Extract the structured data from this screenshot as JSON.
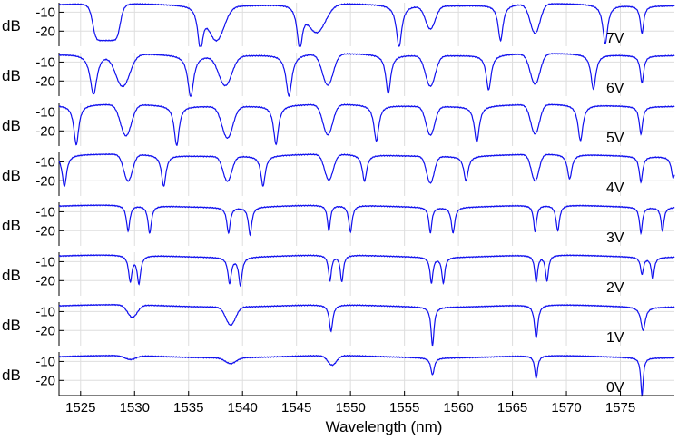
{
  "chart_data": {
    "type": "line",
    "xlabel": "Wavelength (nm)",
    "xlim": [
      1523,
      1580
    ],
    "xticks": [
      "1525",
      "1530",
      "1535",
      "1540",
      "1545",
      "1550",
      "1555",
      "1560",
      "1565",
      "1570",
      "1575"
    ],
    "ylabel": "dB",
    "ylim": [
      -28,
      -5
    ],
    "yticks": [
      "-10",
      "-20"
    ],
    "grid": true,
    "line_color": "#1010ee",
    "panels": [
      {
        "label": "7V",
        "baseline": -6.0,
        "dips": [
          {
            "center": 1527.4,
            "width": 1.3,
            "depth": -25.5,
            "shape": "flat"
          },
          {
            "center": 1536.1,
            "width": 0.55,
            "depth": -28.0,
            "shape": "sharp"
          },
          {
            "center": 1537.6,
            "width": 0.7,
            "depth": -23.5,
            "shape": "round"
          },
          {
            "center": 1545.3,
            "width": 0.55,
            "depth": -28.0,
            "shape": "sharp"
          },
          {
            "center": 1546.9,
            "width": 0.8,
            "depth": -20.5,
            "shape": "round"
          },
          {
            "center": 1554.5,
            "width": 0.55,
            "depth": -28.0,
            "shape": "sharp"
          },
          {
            "center": 1557.4,
            "width": 0.45,
            "depth": -18.0,
            "shape": "round"
          },
          {
            "center": 1563.9,
            "width": 0.5,
            "depth": -25.0,
            "shape": "sharp"
          },
          {
            "center": 1567.1,
            "width": 0.45,
            "depth": -21.5,
            "shape": "round"
          },
          {
            "center": 1573.6,
            "width": 0.5,
            "depth": -26.5,
            "shape": "sharp"
          },
          {
            "center": 1577.0,
            "width": 0.35,
            "depth": -20.5,
            "shape": "sharp"
          }
        ]
      },
      {
        "label": "6V",
        "baseline": -6.0,
        "dips": [
          {
            "center": 1526.2,
            "width": 0.7,
            "depth": -27.5,
            "shape": "sharp"
          },
          {
            "center": 1528.9,
            "width": 0.65,
            "depth": -23.0,
            "shape": "round"
          },
          {
            "center": 1535.2,
            "width": 0.6,
            "depth": -28.0,
            "shape": "sharp"
          },
          {
            "center": 1538.4,
            "width": 0.6,
            "depth": -21.5,
            "shape": "round"
          },
          {
            "center": 1544.3,
            "width": 0.6,
            "depth": -28.0,
            "shape": "sharp"
          },
          {
            "center": 1547.9,
            "width": 0.5,
            "depth": -22.5,
            "shape": "round"
          },
          {
            "center": 1553.5,
            "width": 0.5,
            "depth": -26.5,
            "shape": "sharp"
          },
          {
            "center": 1557.4,
            "width": 0.45,
            "depth": -22.0,
            "shape": "round"
          },
          {
            "center": 1562.8,
            "width": 0.5,
            "depth": -24.5,
            "shape": "sharp"
          },
          {
            "center": 1567.1,
            "width": 0.45,
            "depth": -22.0,
            "shape": "round"
          },
          {
            "center": 1572.5,
            "width": 0.5,
            "depth": -24.5,
            "shape": "sharp"
          },
          {
            "center": 1577.0,
            "width": 0.35,
            "depth": -20.5,
            "shape": "sharp"
          }
        ]
      },
      {
        "label": "5V",
        "baseline": -6.5,
        "dips": [
          {
            "center": 1524.6,
            "width": 0.5,
            "depth": -27.5,
            "shape": "sharp"
          },
          {
            "center": 1529.2,
            "width": 0.5,
            "depth": -23.0,
            "shape": "round"
          },
          {
            "center": 1533.9,
            "width": 0.5,
            "depth": -27.5,
            "shape": "sharp"
          },
          {
            "center": 1538.6,
            "width": 0.5,
            "depth": -23.0,
            "shape": "round"
          },
          {
            "center": 1543.1,
            "width": 0.5,
            "depth": -27.0,
            "shape": "sharp"
          },
          {
            "center": 1547.9,
            "width": 0.45,
            "depth": -22.5,
            "shape": "round"
          },
          {
            "center": 1552.4,
            "width": 0.5,
            "depth": -25.5,
            "shape": "sharp"
          },
          {
            "center": 1557.4,
            "width": 0.4,
            "depth": -21.5,
            "shape": "round"
          },
          {
            "center": 1561.7,
            "width": 0.5,
            "depth": -25.5,
            "shape": "sharp"
          },
          {
            "center": 1567.1,
            "width": 0.4,
            "depth": -22.0,
            "shape": "round"
          },
          {
            "center": 1571.3,
            "width": 0.5,
            "depth": -25.5,
            "shape": "sharp"
          },
          {
            "center": 1576.9,
            "width": 0.35,
            "depth": -21.0,
            "shape": "sharp"
          }
        ]
      },
      {
        "label": "4V",
        "baseline": -6.5,
        "dips": [
          {
            "center": 1523.5,
            "width": 0.45,
            "depth": -23.0,
            "shape": "sharp"
          },
          {
            "center": 1529.4,
            "width": 0.4,
            "depth": -20.5,
            "shape": "round"
          },
          {
            "center": 1532.7,
            "width": 0.45,
            "depth": -23.0,
            "shape": "sharp"
          },
          {
            "center": 1538.6,
            "width": 0.4,
            "depth": -19.5,
            "shape": "round"
          },
          {
            "center": 1541.9,
            "width": 0.45,
            "depth": -22.5,
            "shape": "sharp"
          },
          {
            "center": 1548.0,
            "width": 0.4,
            "depth": -20.0,
            "shape": "round"
          },
          {
            "center": 1551.3,
            "width": 0.45,
            "depth": -20.5,
            "shape": "sharp"
          },
          {
            "center": 1557.4,
            "width": 0.35,
            "depth": -20.5,
            "shape": "round"
          },
          {
            "center": 1560.7,
            "width": 0.45,
            "depth": -19.5,
            "shape": "sharp"
          },
          {
            "center": 1567.1,
            "width": 0.35,
            "depth": -20.5,
            "shape": "round"
          },
          {
            "center": 1570.3,
            "width": 0.45,
            "depth": -19.5,
            "shape": "sharp"
          },
          {
            "center": 1576.9,
            "width": 0.35,
            "depth": -20.0,
            "shape": "sharp"
          },
          {
            "center": 1579.9,
            "width": 0.4,
            "depth": -18.0,
            "shape": "sharp"
          }
        ]
      },
      {
        "label": "3V",
        "baseline": -7.0,
        "dips": [
          {
            "center": 1529.4,
            "width": 0.35,
            "depth": -20.5,
            "shape": "sharp"
          },
          {
            "center": 1531.4,
            "width": 0.35,
            "depth": -21.5,
            "shape": "sharp"
          },
          {
            "center": 1538.7,
            "width": 0.35,
            "depth": -20.5,
            "shape": "sharp"
          },
          {
            "center": 1540.7,
            "width": 0.35,
            "depth": -21.5,
            "shape": "sharp"
          },
          {
            "center": 1548.0,
            "width": 0.3,
            "depth": -20.5,
            "shape": "sharp"
          },
          {
            "center": 1550.0,
            "width": 0.35,
            "depth": -21.0,
            "shape": "sharp"
          },
          {
            "center": 1557.4,
            "width": 0.3,
            "depth": -20.5,
            "shape": "sharp"
          },
          {
            "center": 1559.5,
            "width": 0.35,
            "depth": -20.5,
            "shape": "sharp"
          },
          {
            "center": 1567.1,
            "width": 0.3,
            "depth": -21.0,
            "shape": "sharp"
          },
          {
            "center": 1569.2,
            "width": 0.35,
            "depth": -20.5,
            "shape": "sharp"
          },
          {
            "center": 1576.9,
            "width": 0.3,
            "depth": -20.5,
            "shape": "sharp"
          },
          {
            "center": 1578.9,
            "width": 0.3,
            "depth": -19.5,
            "shape": "sharp"
          }
        ]
      },
      {
        "label": "2V",
        "baseline": -7.0,
        "dips": [
          {
            "center": 1529.6,
            "width": 0.35,
            "depth": -20.5,
            "shape": "sharp"
          },
          {
            "center": 1530.4,
            "width": 0.35,
            "depth": -21.5,
            "shape": "sharp"
          },
          {
            "center": 1538.8,
            "width": 0.35,
            "depth": -20.5,
            "shape": "sharp"
          },
          {
            "center": 1539.8,
            "width": 0.35,
            "depth": -21.5,
            "shape": "sharp"
          },
          {
            "center": 1548.1,
            "width": 0.3,
            "depth": -20.5,
            "shape": "sharp"
          },
          {
            "center": 1549.2,
            "width": 0.3,
            "depth": -21.0,
            "shape": "sharp"
          },
          {
            "center": 1557.5,
            "width": 0.3,
            "depth": -20.5,
            "shape": "sharp"
          },
          {
            "center": 1558.6,
            "width": 0.3,
            "depth": -20.5,
            "shape": "sharp"
          },
          {
            "center": 1567.2,
            "width": 0.3,
            "depth": -21.0,
            "shape": "sharp"
          },
          {
            "center": 1568.2,
            "width": 0.3,
            "depth": -20.5,
            "shape": "sharp"
          },
          {
            "center": 1577.0,
            "width": 0.3,
            "depth": -16.0,
            "shape": "sharp"
          },
          {
            "center": 1578.0,
            "width": 0.3,
            "depth": -18.5,
            "shape": "sharp"
          }
        ]
      },
      {
        "label": "1V",
        "baseline": -7.0,
        "dips": [
          {
            "center": 1529.8,
            "width": 0.45,
            "depth": -13.5,
            "shape": "round"
          },
          {
            "center": 1538.9,
            "width": 0.45,
            "depth": -16.5,
            "shape": "round"
          },
          {
            "center": 1548.2,
            "width": 0.35,
            "depth": -21.0,
            "shape": "sharp"
          },
          {
            "center": 1557.6,
            "width": 0.3,
            "depth": -27.5,
            "shape": "sharp"
          },
          {
            "center": 1567.2,
            "width": 0.35,
            "depth": -24.5,
            "shape": "sharp"
          },
          {
            "center": 1577.1,
            "width": 0.45,
            "depth": -19.5,
            "shape": "sharp"
          }
        ]
      },
      {
        "label": "0V",
        "baseline": -7.5,
        "dips": [
          {
            "center": 1529.6,
            "width": 0.5,
            "depth": -9.5,
            "shape": "round"
          },
          {
            "center": 1538.9,
            "width": 0.5,
            "depth": -10.5,
            "shape": "round"
          },
          {
            "center": 1548.3,
            "width": 0.4,
            "depth": -12.5,
            "shape": "round"
          },
          {
            "center": 1557.6,
            "width": 0.35,
            "depth": -16.5,
            "shape": "sharp"
          },
          {
            "center": 1567.2,
            "width": 0.3,
            "depth": -19.5,
            "shape": "sharp"
          },
          {
            "center": 1577.0,
            "width": 0.25,
            "depth": -27.5,
            "shape": "sharp"
          }
        ]
      }
    ]
  }
}
